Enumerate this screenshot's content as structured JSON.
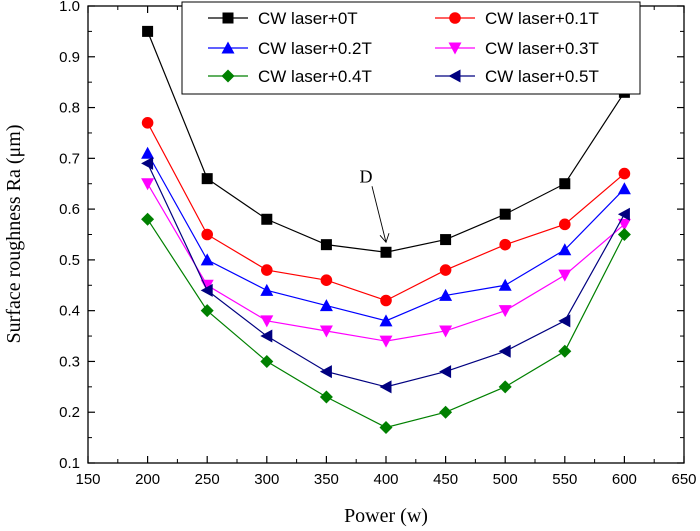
{
  "chart_data": {
    "type": "line",
    "title": "",
    "xlabel": "Power (w)",
    "ylabel": "Surface roughness Ra (μm)",
    "xlim": [
      150,
      650
    ],
    "ylim": [
      0.1,
      1.0
    ],
    "x_ticks": [
      150,
      200,
      250,
      300,
      350,
      400,
      450,
      500,
      550,
      600,
      650
    ],
    "y_ticks": [
      0.1,
      0.2,
      0.3,
      0.4,
      0.5,
      0.6,
      0.7,
      0.8,
      0.9,
      1.0
    ],
    "x_tick_labels": [
      "150",
      "200",
      "250",
      "300",
      "350",
      "400",
      "450",
      "500",
      "550",
      "600",
      "650"
    ],
    "y_tick_labels": [
      "0.1",
      "0.2",
      "0.3",
      "0.4",
      "0.5",
      "0.6",
      "0.7",
      "0.8",
      "0.9",
      "1.0"
    ],
    "grid": false,
    "legend_position": "top-right",
    "x": [
      200,
      250,
      300,
      350,
      400,
      450,
      500,
      550,
      600
    ],
    "series": [
      {
        "name": "CW laser+0T",
        "color": "#000000",
        "marker": "square",
        "values": [
          0.95,
          0.66,
          0.58,
          0.53,
          0.515,
          0.54,
          0.59,
          0.65,
          0.83
        ]
      },
      {
        "name": "CW laser+0.1T",
        "color": "#ff0000",
        "marker": "circle",
        "values": [
          0.77,
          0.55,
          0.48,
          0.46,
          0.42,
          0.48,
          0.53,
          0.57,
          0.67
        ]
      },
      {
        "name": "CW laser+0.2T",
        "color": "#0000ff",
        "marker": "triangle-up",
        "values": [
          0.71,
          0.5,
          0.44,
          0.41,
          0.38,
          0.43,
          0.45,
          0.52,
          0.64
        ]
      },
      {
        "name": "CW laser+0.3T",
        "color": "#ff00ff",
        "marker": "triangle-down",
        "values": [
          0.65,
          0.45,
          0.38,
          0.36,
          0.34,
          0.36,
          0.4,
          0.47,
          0.57
        ]
      },
      {
        "name": "CW laser+0.4T",
        "color": "#008000",
        "marker": "diamond",
        "values": [
          0.58,
          0.4,
          0.3,
          0.23,
          0.17,
          0.2,
          0.25,
          0.32,
          0.55
        ]
      },
      {
        "name": "CW laser+0.5T",
        "color": "#000080",
        "marker": "triangle-left",
        "values": [
          0.69,
          0.44,
          0.35,
          0.28,
          0.25,
          0.28,
          0.32,
          0.38,
          0.59
        ]
      }
    ],
    "annotations": [
      {
        "text": "D",
        "x": 400,
        "y": 0.515
      }
    ]
  }
}
